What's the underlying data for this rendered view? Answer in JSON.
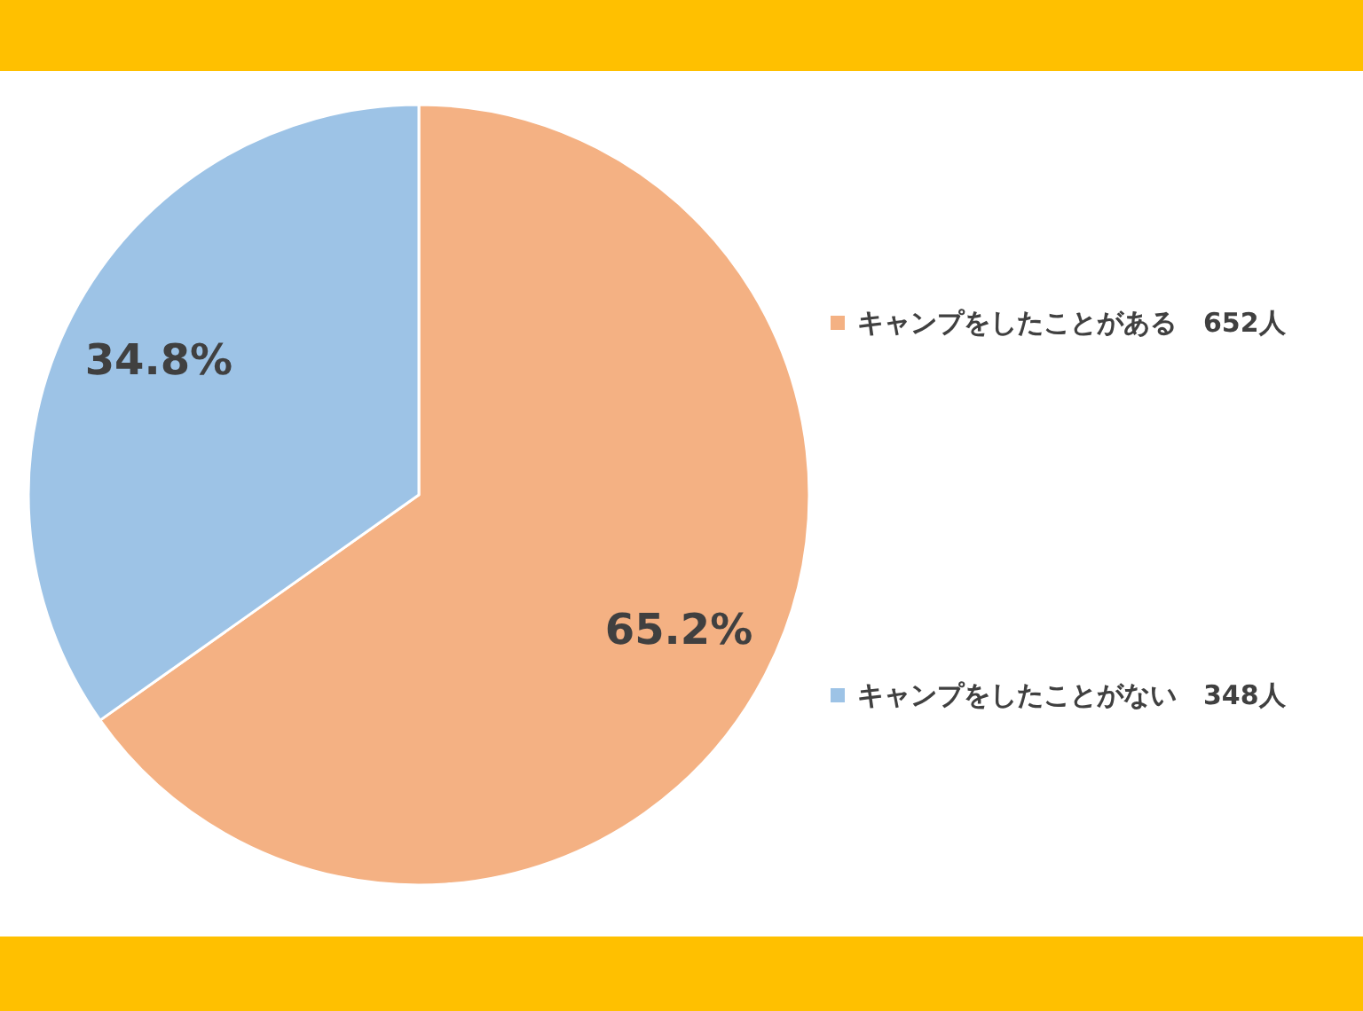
{
  "chart_data": {
    "type": "pie",
    "categories": [
      "キャンプをしたことがある　652人",
      "キャンプをしたことがない　348人"
    ],
    "values": [
      65.2,
      34.8
    ],
    "colors": [
      "#f4b183",
      "#9dc3e6"
    ],
    "value_labels": [
      "65.2%",
      "34.8%"
    ],
    "legend": "right"
  }
}
